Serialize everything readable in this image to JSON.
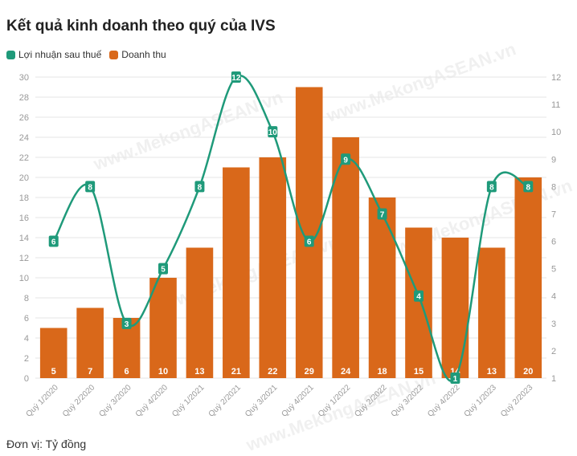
{
  "title": "Kết quả kinh doanh theo quý của IVS",
  "unit_note": "Đơn vị: Tỷ đồng",
  "watermark": "www.MekongASEAN.vn",
  "colors": {
    "profit": "#1f9a7a",
    "revenue": "#d9681a",
    "grid": "#e6e6e6",
    "tick": "#999999"
  },
  "chart_data": {
    "type": "bar",
    "categories": [
      "Quý 1/2020",
      "Quý 2/2020",
      "Quý 3/2020",
      "Quý 4/2020",
      "Quý 1/2021",
      "Quý 2/2021",
      "Quý 3/2021",
      "Quý 4/2021",
      "Quý 1/2022",
      "Quý 2/2022",
      "Quý 3/2022",
      "Quý 4/2022",
      "Quý 1/2023",
      "Quý 2/2023"
    ],
    "series": [
      {
        "name": "Lợi nhuận sau thuế",
        "type": "line",
        "axis": "right",
        "values": [
          6,
          8,
          3,
          5,
          8,
          12,
          10,
          6,
          9,
          7,
          4,
          1,
          8,
          8
        ]
      },
      {
        "name": "Doanh thu",
        "type": "bar",
        "axis": "left",
        "values": [
          5,
          7,
          6,
          10,
          13,
          21,
          22,
          29,
          24,
          18,
          15,
          14,
          13,
          20
        ]
      }
    ],
    "left_axis": {
      "min": 0,
      "max": 30,
      "ticks": [
        0,
        2,
        4,
        6,
        8,
        10,
        12,
        14,
        16,
        18,
        20,
        22,
        24,
        26,
        28,
        30
      ]
    },
    "right_axis": {
      "min": 1,
      "max": 12,
      "ticks": [
        1,
        2,
        3,
        4,
        5,
        6,
        7,
        8,
        9,
        10,
        11,
        12
      ]
    },
    "grid": true,
    "legend_position": "top-left"
  }
}
